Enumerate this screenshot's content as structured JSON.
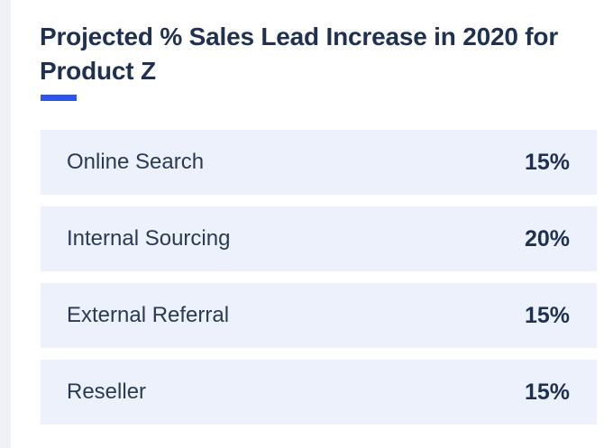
{
  "colors": {
    "accent": "#2b55e6",
    "title_text": "#1f3050",
    "row_background": "#edf1fb",
    "page_background": "#ffffff"
  },
  "title": "Projected % Sales Lead Increase in 2020 for Product Z",
  "rows": [
    {
      "label": "Online Search",
      "value": "15%"
    },
    {
      "label": "Internal Sourcing",
      "value": "20%"
    },
    {
      "label": "External Referral",
      "value": "15%"
    },
    {
      "label": "Reseller",
      "value": "15%"
    }
  ]
}
